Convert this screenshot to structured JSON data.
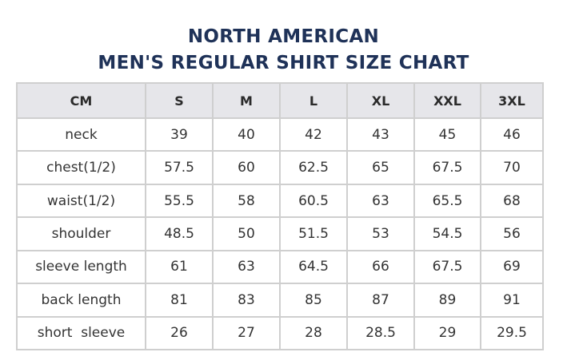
{
  "title": {
    "line1": "NORTH AMERICAN",
    "line2": "MEN'S REGULAR SHIRT SIZE CHART"
  },
  "table": {
    "headers": [
      "CM",
      "S",
      "M",
      "L",
      "XL",
      "XXL",
      "3XL"
    ],
    "rows": [
      {
        "label": "neck",
        "values": [
          "39",
          "40",
          "42",
          "43",
          "45",
          "46"
        ]
      },
      {
        "label": "chest(1/2)",
        "values": [
          "57.5",
          "60",
          "62.5",
          "65",
          "67.5",
          "70"
        ]
      },
      {
        "label": "waist(1/2)",
        "values": [
          "55.5",
          "58",
          "60.5",
          "63",
          "65.5",
          "68"
        ]
      },
      {
        "label": "shoulder",
        "values": [
          "48.5",
          "50",
          "51.5",
          "53",
          "54.5",
          "56"
        ]
      },
      {
        "label": "sleeve length",
        "values": [
          "61",
          "63",
          "64.5",
          "66",
          "67.5",
          "69"
        ]
      },
      {
        "label": "back length",
        "values": [
          "81",
          "83",
          "85",
          "87",
          "89",
          "91"
        ]
      },
      {
        "label": "short  sleeve",
        "values": [
          "26",
          "27",
          "28",
          "28.5",
          "29",
          "29.5"
        ]
      }
    ]
  },
  "colors": {
    "title": "#1f3258",
    "header_bg": "#e6e6ea",
    "border": "#cfcfcf",
    "text": "#333333"
  }
}
